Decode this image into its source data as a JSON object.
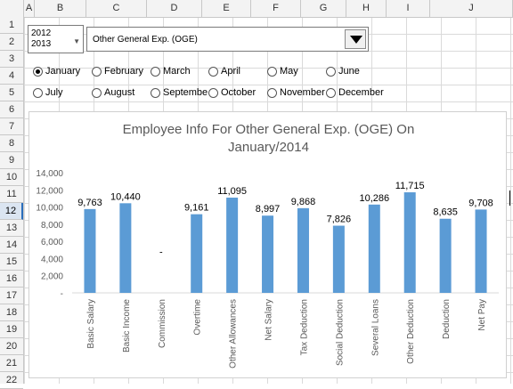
{
  "columns": [
    "A",
    "B",
    "C",
    "D",
    "E",
    "F",
    "G",
    "H",
    "I",
    "J"
  ],
  "rows": [
    "1",
    "2",
    "3",
    "4",
    "5",
    "6",
    "7",
    "8",
    "9",
    "10",
    "11",
    "12",
    "13",
    "14",
    "15",
    "16",
    "17",
    "18",
    "19",
    "20",
    "21",
    "22"
  ],
  "active_row": "12",
  "year_list": {
    "items": [
      "2012",
      "2013"
    ]
  },
  "department_combo": {
    "value": "Other General Exp. (OGE)"
  },
  "months": [
    {
      "label": "January",
      "checked": true
    },
    {
      "label": "February",
      "checked": false
    },
    {
      "label": "March",
      "checked": false
    },
    {
      "label": "April",
      "checked": false
    },
    {
      "label": "May",
      "checked": false
    },
    {
      "label": "June",
      "checked": false
    },
    {
      "label": "July",
      "checked": false
    },
    {
      "label": "August",
      "checked": false
    },
    {
      "label": "Septembe",
      "checked": false
    },
    {
      "label": "October",
      "checked": false
    },
    {
      "label": "November",
      "checked": false
    },
    {
      "label": "December",
      "checked": false
    }
  ],
  "chart_data": {
    "type": "bar",
    "title_line1": "Employee Info For Other General Exp. (OGE) On",
    "title_line2": "January/2014",
    "categories": [
      "Basic Salary",
      "Basic Income",
      "Commission",
      "Overtime",
      "Other Allowances",
      "Net Salary",
      "Tax Deduction",
      "Social Deduction",
      "Several Loans",
      "Other Deduction",
      "Deduction",
      "Net Pay"
    ],
    "values": [
      9763,
      10440,
      0,
      9161,
      11095,
      8997,
      9868,
      7826,
      10286,
      11715,
      8635,
      9708
    ],
    "data_labels": [
      "9,763",
      "10,440",
      "-",
      "9,161",
      "11,095",
      "8,997",
      "9,868",
      "7,826",
      "10,286",
      "11,715",
      "8,635",
      "9,708"
    ],
    "ylim": [
      0,
      14000
    ],
    "yticks": [
      0,
      2000,
      4000,
      6000,
      8000,
      10000,
      12000,
      14000
    ],
    "ytick_labels": [
      "-",
      "2,000",
      "4,000",
      "6,000",
      "8,000",
      "10,000",
      "12,000",
      "14,000"
    ],
    "bar_color": "#5b9bd5",
    "grid": false,
    "legend": "none"
  }
}
